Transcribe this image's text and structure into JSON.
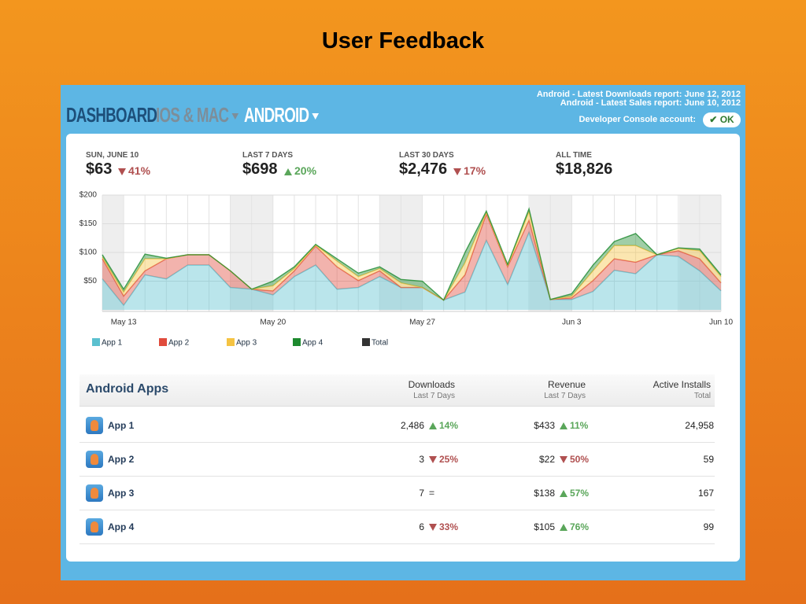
{
  "title": "User Feedback",
  "nav": [
    "DASHBOARD",
    "IOS & MAC",
    "ANDROID"
  ],
  "reports": [
    {
      "label": "Android - Latest Downloads report:",
      "value": "June 12, 2012"
    },
    {
      "label": "Android - Latest Sales report:",
      "value": "June 10, 2012"
    },
    {
      "label": "Developer Console account:",
      "value": "OK"
    }
  ],
  "stats": [
    {
      "label": "SUN, JUNE 10",
      "value": "$63",
      "change": {
        "text": "41%",
        "dir": "down"
      }
    },
    {
      "label": "LAST 7 DAYS",
      "value": "$698",
      "change": {
        "text": "20%",
        "dir": "up"
      }
    },
    {
      "label": "LAST 30 DAYS",
      "value": "$2,476",
      "change": {
        "text": "17%",
        "dir": "down"
      }
    },
    {
      "label": "ALL TIME",
      "value": "$18,826"
    }
  ],
  "chart_data": {
    "type": "stacked-area",
    "categories": [
      null,
      "May 13",
      null,
      null,
      null,
      null,
      null,
      null,
      "May 20",
      null,
      null,
      null,
      null,
      null,
      null,
      "May 27",
      null,
      null,
      null,
      null,
      null,
      null,
      "Jun 3",
      null,
      null,
      null,
      null,
      null,
      null,
      "Jun 10"
    ],
    "series": [
      {
        "name": "App 1",
        "color": "#5bc0cf",
        "values": [
          54,
          8,
          61,
          54,
          78,
          78,
          39,
          36,
          26,
          58,
          78,
          36,
          39,
          58,
          39,
          39,
          17,
          31,
          121,
          44,
          135,
          18,
          18,
          32,
          69,
          63,
          96,
          93,
          68,
          33
        ]
      },
      {
        "name": "App 2",
        "color": "#e04b3c",
        "values": [
          35,
          16,
          7,
          35,
          18,
          18,
          29,
          0,
          7,
          10,
          33,
          39,
          12,
          10,
          0,
          0,
          0,
          30,
          46,
          31,
          21,
          0,
          3,
          19,
          20,
          20,
          0,
          10,
          21,
          14
        ]
      },
      {
        "name": "App 3",
        "color": "#f5c342",
        "values": [
          3,
          7,
          21,
          0,
          0,
          0,
          0,
          0,
          9,
          4,
          2,
          10,
          7,
          4,
          8,
          0,
          0,
          21,
          3,
          2,
          15,
          0,
          3,
          17,
          23,
          29,
          0,
          4,
          14,
          11
        ]
      },
      {
        "name": "App 4",
        "color": "#1d8a2e",
        "values": [
          4,
          5,
          8,
          1,
          0,
          0,
          0,
          0,
          8,
          3,
          1,
          4,
          6,
          3,
          6,
          11,
          0,
          18,
          2,
          2,
          5,
          0,
          4,
          10,
          7,
          21,
          0,
          1,
          3,
          3
        ]
      }
    ],
    "total": {
      "name": "Total",
      "color": "#333333"
    },
    "ylim": [
      0,
      200
    ],
    "yticks": [
      {
        "value": 50,
        "label": "$50"
      },
      {
        "value": 100,
        "label": "$100"
      },
      {
        "value": 150,
        "label": "$150"
      },
      {
        "value": 200,
        "label": "$200"
      }
    ],
    "grid": true
  },
  "table": {
    "title": "Android Apps",
    "columns": [
      {
        "title": "Downloads",
        "subtitle": "Last 7 Days"
      },
      {
        "title": "Revenue",
        "subtitle": "Last 7 Days"
      },
      {
        "title": "Active Installs",
        "subtitle": "Total"
      }
    ],
    "rows": [
      {
        "name": "App 1",
        "downloads": "2,486",
        "downloads_change": {
          "text": "14%",
          "dir": "up"
        },
        "revenue": "$433",
        "revenue_change": {
          "text": "11%",
          "dir": "up"
        },
        "installs": "24,958"
      },
      {
        "name": "App 2",
        "downloads": "3",
        "downloads_change": {
          "text": "25%",
          "dir": "down"
        },
        "revenue": "$22",
        "revenue_change": {
          "text": "50%",
          "dir": "down"
        },
        "installs": "59"
      },
      {
        "name": "App 3",
        "downloads": "7",
        "downloads_change": {
          "text": "=",
          "dir": "flat"
        },
        "revenue": "$138",
        "revenue_change": {
          "text": "57%",
          "dir": "up"
        },
        "installs": "167"
      },
      {
        "name": "App 4",
        "downloads": "6",
        "downloads_change": {
          "text": "33%",
          "dir": "down"
        },
        "revenue": "$105",
        "revenue_change": {
          "text": "76%",
          "dir": "up"
        },
        "installs": "99"
      }
    ]
  }
}
